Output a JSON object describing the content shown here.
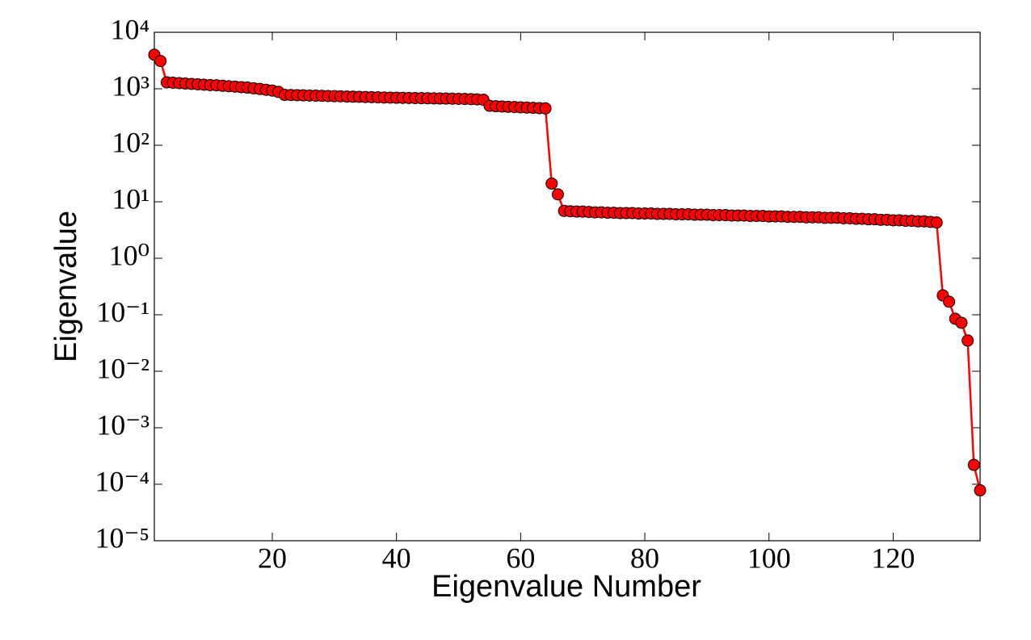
{
  "chart_data": {
    "type": "line",
    "x_label": "Eigenvalue Number",
    "y_label": "Eigenvalue",
    "log_y": true,
    "grid": false,
    "xlim": [
      1,
      134
    ],
    "xticks": [
      20,
      40,
      60,
      80,
      100,
      120
    ],
    "ylim": [
      1e-05,
      10000
    ],
    "yticks": [
      {
        "value": 1e-05,
        "label": "10⁻⁵"
      },
      {
        "value": 0.0001,
        "label": "10⁻⁴"
      },
      {
        "value": 0.001,
        "label": "10⁻³"
      },
      {
        "value": 0.01,
        "label": "10⁻²"
      },
      {
        "value": 0.1,
        "label": "10⁻¹"
      },
      {
        "value": 1,
        "label": "10⁰"
      },
      {
        "value": 10,
        "label": "10¹"
      },
      {
        "value": 100,
        "label": "10²"
      },
      {
        "value": 1000,
        "label": "10³"
      },
      {
        "value": 10000,
        "label": "10⁴"
      }
    ],
    "x": [
      1,
      2,
      3,
      4,
      5,
      6,
      7,
      8,
      9,
      10,
      11,
      12,
      13,
      14,
      15,
      16,
      17,
      18,
      19,
      20,
      21,
      22,
      23,
      24,
      25,
      26,
      27,
      28,
      29,
      30,
      31,
      32,
      33,
      34,
      35,
      36,
      37,
      38,
      39,
      40,
      41,
      42,
      43,
      44,
      45,
      46,
      47,
      48,
      49,
      50,
      51,
      52,
      53,
      54,
      55,
      56,
      57,
      58,
      59,
      60,
      61,
      62,
      63,
      64,
      65,
      66,
      67,
      68,
      69,
      70,
      71,
      72,
      73,
      74,
      75,
      76,
      77,
      78,
      79,
      80,
      81,
      82,
      83,
      84,
      85,
      86,
      87,
      88,
      89,
      90,
      91,
      92,
      93,
      94,
      95,
      96,
      97,
      98,
      99,
      100,
      101,
      102,
      103,
      104,
      105,
      106,
      107,
      108,
      109,
      110,
      111,
      112,
      113,
      114,
      115,
      116,
      117,
      118,
      119,
      120,
      121,
      122,
      123,
      124,
      125,
      126,
      127,
      128,
      129,
      130,
      131,
      132,
      133,
      134
    ],
    "series": [
      {
        "color": "#ff0000",
        "values": [
          4000,
          3100,
          1300,
          1280,
          1260,
          1240,
          1220,
          1200,
          1180,
          1160,
          1150,
          1130,
          1110,
          1090,
          1070,
          1050,
          1020,
          990,
          960,
          930,
          880,
          780,
          775,
          770,
          765,
          760,
          755,
          750,
          745,
          740,
          735,
          730,
          725,
          720,
          715,
          710,
          705,
          700,
          697,
          694,
          691,
          688,
          685,
          682,
          679,
          676,
          673,
          670,
          667,
          664,
          660,
          655,
          650,
          640,
          500,
          490,
          485,
          480,
          475,
          470,
          465,
          460,
          455,
          450,
          21,
          13.5,
          6.9,
          6.8,
          6.7,
          6.7,
          6.6,
          6.5,
          6.5,
          6.4,
          6.4,
          6.3,
          6.3,
          6.3,
          6.2,
          6.2,
          6.2,
          6.1,
          6.1,
          6.1,
          6.0,
          6.0,
          6.0,
          5.9,
          5.9,
          5.9,
          5.8,
          5.8,
          5.8,
          5.7,
          5.7,
          5.7,
          5.6,
          5.6,
          5.6,
          5.5,
          5.5,
          5.5,
          5.4,
          5.4,
          5.4,
          5.3,
          5.3,
          5.3,
          5.2,
          5.2,
          5.2,
          5.1,
          5.1,
          5.0,
          5.0,
          4.9,
          4.9,
          4.8,
          4.8,
          4.7,
          4.7,
          4.6,
          4.6,
          4.5,
          4.5,
          4.4,
          4.3,
          0.22,
          0.17,
          0.085,
          0.072,
          0.035,
          0.00022,
          7.8e-05
        ]
      }
    ]
  }
}
